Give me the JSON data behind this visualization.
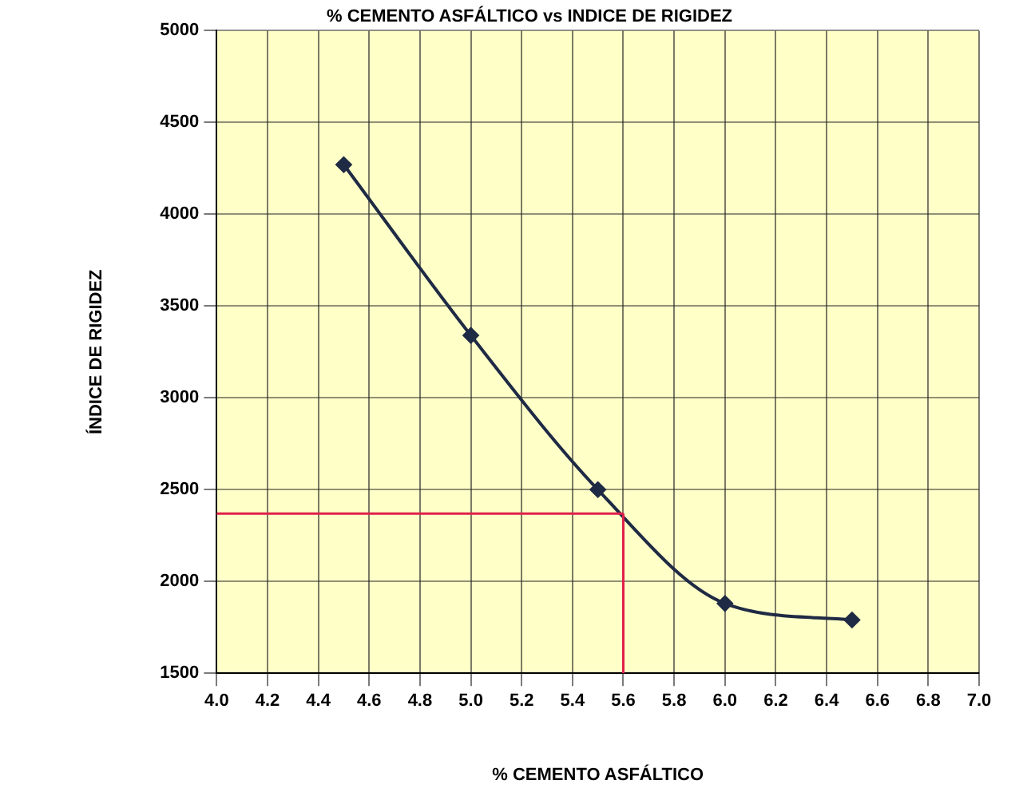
{
  "chart_data": {
    "type": "line",
    "title": "% CEMENTO ASFÁLTICO vs INDICE DE RIGIDEZ",
    "xlabel": "% CEMENTO ASFÁLTICO",
    "ylabel": "ÍNDICE DE RIGIDEZ",
    "x": [
      4.5,
      5.0,
      5.5,
      6.0,
      6.5
    ],
    "series": [
      {
        "color": "#1f2a44",
        "values": [
          4270,
          3340,
          2500,
          1880,
          1790
        ],
        "marker": "diamond"
      }
    ],
    "ref_lines": [
      {
        "axis": "x",
        "value": 5.6,
        "color": "#e0204a"
      },
      {
        "axis": "y",
        "value": 2370,
        "color": "#e0204a"
      }
    ],
    "xlim": [
      4.0,
      7.0
    ],
    "xticks": [
      {
        "value": 4.0,
        "label": "4.0"
      },
      {
        "value": 4.2,
        "label": "4.2"
      },
      {
        "value": 4.4,
        "label": "4.4"
      },
      {
        "value": 4.6,
        "label": "4.6"
      },
      {
        "value": 4.8,
        "label": "4.8"
      },
      {
        "value": 5.0,
        "label": "5.0"
      },
      {
        "value": 5.2,
        "label": "5.2"
      },
      {
        "value": 5.4,
        "label": "5.4"
      },
      {
        "value": 5.6,
        "label": "5.6"
      },
      {
        "value": 5.8,
        "label": "5.8"
      },
      {
        "value": 6.0,
        "label": "6.0"
      },
      {
        "value": 6.2,
        "label": "6.2"
      },
      {
        "value": 6.4,
        "label": "6.4"
      },
      {
        "value": 6.6,
        "label": "6.6"
      },
      {
        "value": 6.8,
        "label": "6.8"
      },
      {
        "value": 7.0,
        "label": "7.0"
      }
    ],
    "ylim": [
      1500,
      5000
    ],
    "yticks": [
      1500,
      2000,
      2500,
      3000,
      3500,
      4000,
      4500,
      5000
    ],
    "grid": true,
    "legend": false
  }
}
